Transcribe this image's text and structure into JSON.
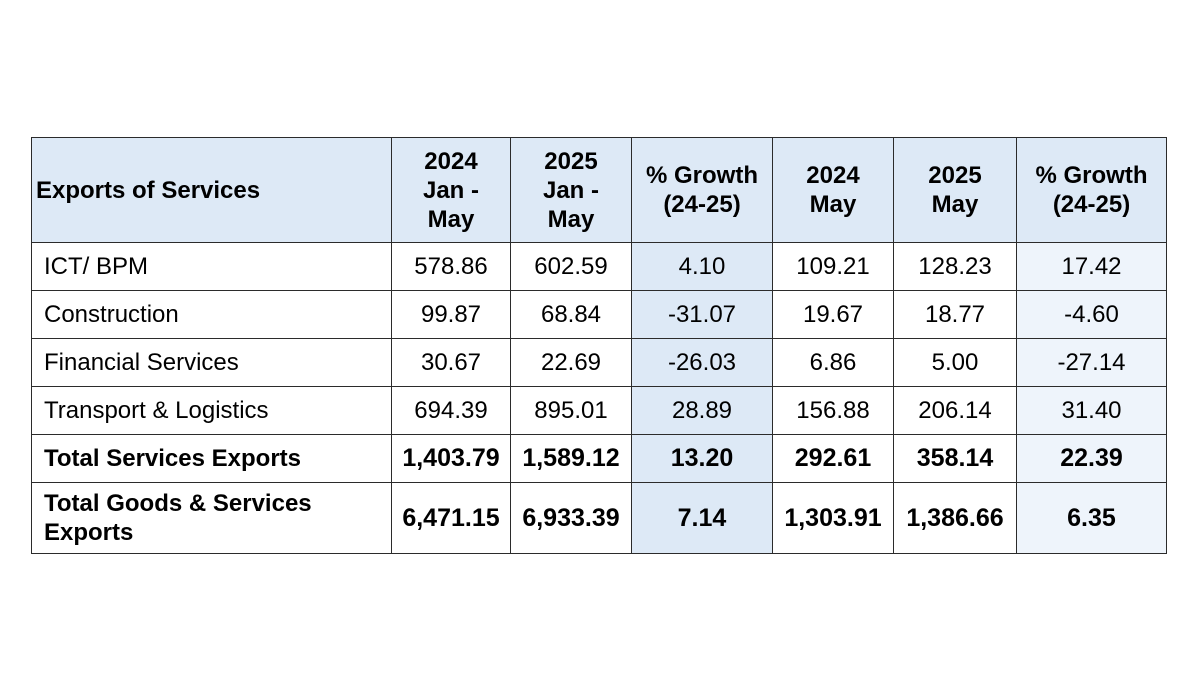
{
  "chart_data": {
    "type": "table",
    "columns": [
      "Exports of Services",
      "2024 Jan - May",
      "2025 Jan - May",
      "% Growth (24-25)",
      "2024 May",
      "2025 May",
      "% Growth (24-25)"
    ],
    "header": {
      "label": "Exports of Services",
      "c1": [
        "2024",
        "Jan -",
        "May"
      ],
      "c2": [
        "2025",
        "Jan -",
        "May"
      ],
      "c3": [
        "% Growth",
        "(24-25)"
      ],
      "c4": [
        "2024",
        "May"
      ],
      "c5": [
        "2025",
        "May"
      ],
      "c6": [
        "% Growth",
        "(24-25)"
      ]
    },
    "rows": [
      {
        "label": "ICT/ BPM",
        "values": [
          "578.86",
          "602.59",
          "4.10",
          "109.21",
          "128.23",
          "17.42"
        ]
      },
      {
        "label": "Construction",
        "values": [
          "99.87",
          "68.84",
          "-31.07",
          "19.67",
          "18.77",
          "-4.60"
        ]
      },
      {
        "label": "Financial Services",
        "values": [
          "30.67",
          "22.69",
          "-26.03",
          "6.86",
          "5.00",
          "-27.14"
        ]
      },
      {
        "label": "Transport & Logistics",
        "values": [
          "694.39",
          "895.01",
          "28.89",
          "156.88",
          "206.14",
          "31.40"
        ]
      },
      {
        "label": "Total Services Exports",
        "values": [
          "1,403.79",
          "1,589.12",
          "13.20",
          "292.61",
          "358.14",
          "22.39"
        ],
        "bold": true
      },
      {
        "label": "Total Goods & Services Exports",
        "values": [
          "6,471.15",
          "6,933.39",
          "7.14",
          "1,303.91",
          "1,386.66",
          "6.35"
        ],
        "bold": true
      }
    ]
  },
  "colors": {
    "header_bg": "#dde9f6",
    "growth_col_bg": "#dde9f6",
    "growth2_col_bg": "#eef4fb",
    "border": "#2b2b2b"
  }
}
